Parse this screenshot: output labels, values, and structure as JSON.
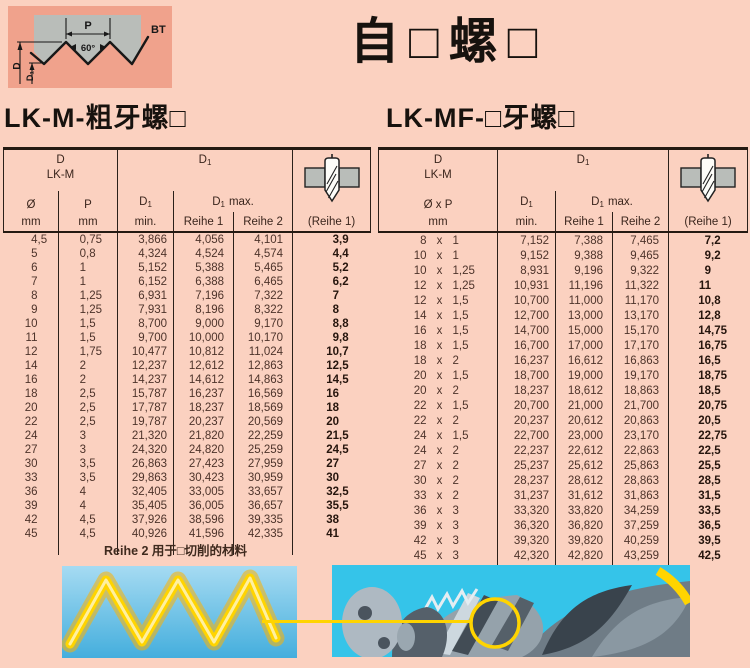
{
  "title": "自□螺□",
  "diagram": {
    "p_label": "P",
    "angle_label": "60°",
    "bt_label": "BT",
    "d_label": "D",
    "d1_base": "D",
    "d1_sub": "1"
  },
  "left": {
    "heading": "LK-M-粗牙螺□",
    "header": {
      "d": "D",
      "series": "LK-M",
      "dia": "Ø",
      "pitch": "P",
      "unit": "mm",
      "d1": "D",
      "sub": "1",
      "min": "min.",
      "max": "max.",
      "reihe1": "Reihe 1",
      "reihe2": "Reihe 2",
      "drill_series": "(Reihe 1)"
    },
    "rows": [
      [
        "4,5",
        "0,75",
        "3,866",
        "4,056",
        "4,101",
        "3,9"
      ],
      [
        "5",
        "0,8",
        "4,324",
        "4,524",
        "4,574",
        "4,4"
      ],
      [
        "6",
        "1",
        "5,152",
        "5,388",
        "5,465",
        "5,2"
      ],
      [
        "7",
        "1",
        "6,152",
        "6,388",
        "6,465",
        "6,2"
      ],
      [
        "8",
        "1,25",
        "6,931",
        "7,196",
        "7,322",
        "7"
      ],
      [
        "9",
        "1,25",
        "7,931",
        "8,196",
        "8,322",
        "8"
      ],
      [
        "10",
        "1,5",
        "8,700",
        "9,000",
        "9,170",
        "8,8"
      ],
      [
        "11",
        "1,5",
        "9,700",
        "10,000",
        "10,170",
        "9,8"
      ],
      [
        "12",
        "1,75",
        "10,477",
        "10,812",
        "11,024",
        "10,7"
      ],
      [
        "14",
        "2",
        "12,237",
        "12,612",
        "12,863",
        "12,5"
      ],
      [
        "16",
        "2",
        "14,237",
        "14,612",
        "14,863",
        "14,5"
      ],
      [
        "18",
        "2,5",
        "15,787",
        "16,237",
        "16,569",
        "16"
      ],
      [
        "20",
        "2,5",
        "17,787",
        "18,237",
        "18,569",
        "18"
      ],
      [
        "22",
        "2,5",
        "19,787",
        "20,237",
        "20,569",
        "20"
      ],
      [
        "24",
        "3",
        "21,320",
        "21,820",
        "22,259",
        "21,5"
      ],
      [
        "27",
        "3",
        "24,320",
        "24,820",
        "25,259",
        "24,5"
      ],
      [
        "30",
        "3,5",
        "26,863",
        "27,423",
        "27,959",
        "27"
      ],
      [
        "33",
        "3,5",
        "29,863",
        "30,423",
        "30,959",
        "30"
      ],
      [
        "36",
        "4",
        "32,405",
        "33,005",
        "33,657",
        "32,5"
      ],
      [
        "39",
        "4",
        "35,405",
        "36,005",
        "36,657",
        "35,5"
      ],
      [
        "42",
        "4,5",
        "37,926",
        "38,596",
        "39,335",
        "38"
      ],
      [
        "45",
        "4,5",
        "40,926",
        "41,596",
        "42,335",
        "41"
      ]
    ],
    "note": "Reihe 2 用于□切削的材料"
  },
  "right": {
    "heading": "LK-MF-□牙螺□",
    "header": {
      "d": "D",
      "series": "LK-M",
      "dia_pitch": "Ø x P",
      "unit": "mm",
      "d1": "D",
      "sub": "1",
      "min": "min.",
      "max": "max.",
      "reihe1": "Reihe 1",
      "reihe2": "Reihe 2",
      "drill_series": "(Reihe 1)"
    },
    "separator": "x",
    "rows": [
      [
        "8",
        "1",
        "7,152",
        "7,388",
        "7,465",
        "7,2"
      ],
      [
        "10",
        "1",
        "9,152",
        "9,388",
        "9,465",
        "9,2"
      ],
      [
        "10",
        "1,25",
        "8,931",
        "9,196",
        "9,322",
        "9"
      ],
      [
        "12",
        "1,25",
        "10,931",
        "11,196",
        "11,322",
        "11"
      ],
      [
        "12",
        "1,5",
        "10,700",
        "11,000",
        "11,170",
        "10,8"
      ],
      [
        "14",
        "1,5",
        "12,700",
        "13,000",
        "13,170",
        "12,8"
      ],
      [
        "16",
        "1,5",
        "14,700",
        "15,000",
        "15,170",
        "14,75"
      ],
      [
        "18",
        "1,5",
        "16,700",
        "17,000",
        "17,170",
        "16,75"
      ],
      [
        "18",
        "2",
        "16,237",
        "16,612",
        "16,863",
        "16,5"
      ],
      [
        "20",
        "1,5",
        "18,700",
        "19,000",
        "19,170",
        "18,75"
      ],
      [
        "20",
        "2",
        "18,237",
        "18,612",
        "18,863",
        "18,5"
      ],
      [
        "22",
        "1,5",
        "20,700",
        "21,000",
        "21,700",
        "20,75"
      ],
      [
        "22",
        "2",
        "20,237",
        "20,612",
        "20,863",
        "20,5"
      ],
      [
        "24",
        "1,5",
        "22,700",
        "23,000",
        "23,170",
        "22,75"
      ],
      [
        "24",
        "2",
        "22,237",
        "22,612",
        "22,863",
        "22,5"
      ],
      [
        "27",
        "2",
        "25,237",
        "25,612",
        "25,863",
        "25,5"
      ],
      [
        "30",
        "2",
        "28,237",
        "28,612",
        "28,863",
        "28,5"
      ],
      [
        "33",
        "2",
        "31,237",
        "31,612",
        "31,863",
        "31,5"
      ],
      [
        "36",
        "3",
        "33,320",
        "33,820",
        "34,259",
        "33,5"
      ],
      [
        "39",
        "3",
        "36,320",
        "36,820",
        "37,259",
        "36,5"
      ],
      [
        "42",
        "3",
        "39,320",
        "39,820",
        "40,259",
        "39,5"
      ],
      [
        "45",
        "3",
        "42,320",
        "42,820",
        "43,259",
        "42,5"
      ]
    ]
  },
  "colors": {
    "page_bg": "#fbd1c0",
    "panel_bg": "#f0a28c",
    "steel_gray": "#b9bdb9",
    "line": "#2b2019",
    "accent_yellow": "#ffd400",
    "photo_blue": "#44aedd",
    "photo_cyan": "#35c4e9"
  }
}
